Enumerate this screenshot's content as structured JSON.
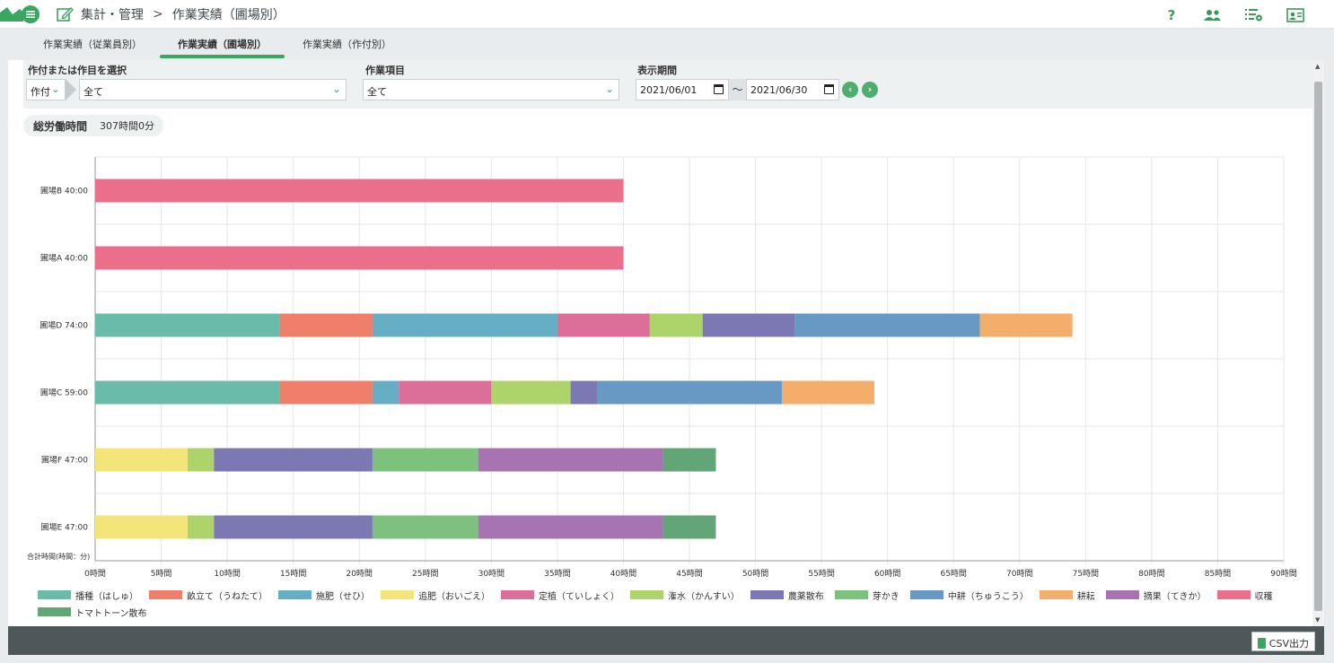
{
  "header": {
    "breadcrumb_root": "集計・管理",
    "breadcrumb_sep": ">",
    "breadcrumb_current": "作業実績（圃場別）",
    "help_label": "?"
  },
  "tabs": [
    {
      "label": "作業実績（従業員別）",
      "active": false
    },
    {
      "label": "作業実績（圃場別）",
      "active": true
    },
    {
      "label": "作業実績（作付別）",
      "active": false
    }
  ],
  "filters": {
    "crop_label": "作付または作目を選択",
    "crop_type_value": "作付",
    "crop_value": "全て",
    "task_label": "作業項目",
    "task_value": "全て",
    "period_label": "表示期間",
    "date_from": "2021/06/01",
    "date_sep": "～",
    "date_to": "2021/06/30"
  },
  "summary": {
    "label": "総労働時間",
    "value": "307時間0分"
  },
  "chart_data": {
    "type": "bar",
    "orientation": "horizontal",
    "stacked": true,
    "categories": [
      "圃場B  40:00",
      "圃場A  40:00",
      "圃場D  74:00",
      "圃場C  59:00",
      "圃場F  47:00",
      "圃場E  47:00"
    ],
    "x_unit_label": "合計時間(時間：分)",
    "xlim": [
      0,
      90
    ],
    "x_ticks": [
      "0時間",
      "5時間",
      "10時間",
      "15時間",
      "20時間",
      "25時間",
      "30時間",
      "35時間",
      "40時間",
      "45時間",
      "50時間",
      "55時間",
      "60時間",
      "65時間",
      "70時間",
      "75時間",
      "80時間",
      "85時間",
      "90時間"
    ],
    "grid": true,
    "legend_position": "bottom",
    "series": [
      {
        "name": "播種（はしゅ）",
        "color": "#6bbba9",
        "values": [
          0,
          0,
          14,
          14,
          0,
          0
        ]
      },
      {
        "name": "畝立て（うねたて）",
        "color": "#ef7f6b",
        "values": [
          0,
          0,
          7,
          7,
          0,
          0
        ]
      },
      {
        "name": "施肥（せひ）",
        "color": "#65aec5",
        "values": [
          0,
          0,
          14,
          2,
          0,
          0
        ]
      },
      {
        "name": "追肥（おいごえ）",
        "color": "#f3e57a",
        "values": [
          0,
          0,
          0,
          0,
          7,
          7
        ]
      },
      {
        "name": "定植（ていしょく）",
        "color": "#db6f9a",
        "values": [
          0,
          0,
          7,
          7,
          0,
          0
        ]
      },
      {
        "name": "潅水（かんすい）",
        "color": "#acd46a",
        "values": [
          0,
          0,
          4,
          6,
          2,
          2
        ]
      },
      {
        "name": "農薬散布",
        "color": "#7c78b3",
        "values": [
          0,
          0,
          7,
          2,
          12,
          12
        ]
      },
      {
        "name": "芽かき",
        "color": "#7cc27d",
        "values": [
          0,
          0,
          0,
          0,
          8,
          8
        ]
      },
      {
        "name": "中耕（ちゅうこう）",
        "color": "#6899c4",
        "values": [
          0,
          0,
          14,
          14,
          0,
          0
        ]
      },
      {
        "name": "耕耘",
        "color": "#f2ae6a",
        "values": [
          0,
          0,
          7,
          7,
          0,
          0
        ]
      },
      {
        "name": "摘果（てきか）",
        "color": "#a774b1",
        "values": [
          0,
          0,
          0,
          0,
          14,
          14
        ]
      },
      {
        "name": "収穫",
        "color": "#ea6f8a",
        "values": [
          40,
          40,
          0,
          0,
          0,
          0
        ]
      },
      {
        "name": "トマトトーン散布",
        "color": "#62a576",
        "values": [
          0,
          0,
          0,
          0,
          4,
          4
        ]
      }
    ]
  },
  "footer": {
    "csv_label": "CSV出力"
  },
  "colors": {
    "accent": "#3aa760",
    "footer_bg": "#4e5759"
  }
}
